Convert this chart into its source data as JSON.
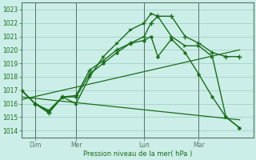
{
  "xlabel": "Pression niveau de la mer( hPa )",
  "bg_color": "#cceee8",
  "grid_color": "#99ccbb",
  "line_color": "#1a6e1a",
  "ylim": [
    1013.5,
    1023.5
  ],
  "yticks": [
    1014,
    1015,
    1016,
    1017,
    1018,
    1019,
    1020,
    1021,
    1022,
    1023
  ],
  "x_tick_labels": [
    "Dim",
    "Mer",
    "Lun",
    "Mar"
  ],
  "x_tick_positions": [
    1,
    4,
    9,
    13
  ],
  "x_vlines": [
    1,
    4,
    9,
    13
  ],
  "xlim": [
    0,
    17
  ],
  "line_main": {
    "x": [
      0,
      1,
      2,
      3,
      4,
      5,
      6,
      7,
      8,
      9,
      9.5,
      10,
      11,
      12,
      13,
      14,
      15,
      16
    ],
    "y": [
      1017.0,
      1016.0,
      1015.3,
      1016.5,
      1016.6,
      1018.5,
      1019.2,
      1020.0,
      1020.5,
      1021.0,
      1022.0,
      1022.5,
      1022.5,
      1021.0,
      1020.5,
      1019.8,
      1019.5,
      1019.5
    ]
  },
  "line_peaked": {
    "x": [
      0,
      1,
      2,
      3,
      4,
      5,
      6,
      7,
      8,
      9,
      9.5,
      10,
      11,
      12,
      13,
      14,
      15,
      16
    ],
    "y": [
      1017.0,
      1016.0,
      1015.5,
      1016.5,
      1016.0,
      1018.0,
      1019.5,
      1020.5,
      1021.5,
      1022.0,
      1022.7,
      1022.5,
      1021.0,
      1020.3,
      1020.3,
      1019.5,
      1015.0,
      1014.2
    ]
  },
  "line_trending_up": {
    "x": [
      0,
      16
    ],
    "y": [
      1016.3,
      1020.0
    ]
  },
  "line_trending_down": {
    "x": [
      0,
      16
    ],
    "y": [
      1016.5,
      1014.8
    ]
  },
  "line_smooth": {
    "x": [
      0,
      1,
      2,
      3,
      4,
      5,
      6,
      7,
      8,
      9,
      9.5,
      10,
      11,
      12,
      13,
      14,
      15,
      16
    ],
    "y": [
      1017.0,
      1016.0,
      1015.4,
      1016.5,
      1016.5,
      1018.2,
      1019.0,
      1019.8,
      1020.5,
      1020.7,
      1021.0,
      1019.5,
      1020.8,
      1019.8,
      1018.2,
      1016.5,
      1015.0,
      1014.2
    ]
  }
}
